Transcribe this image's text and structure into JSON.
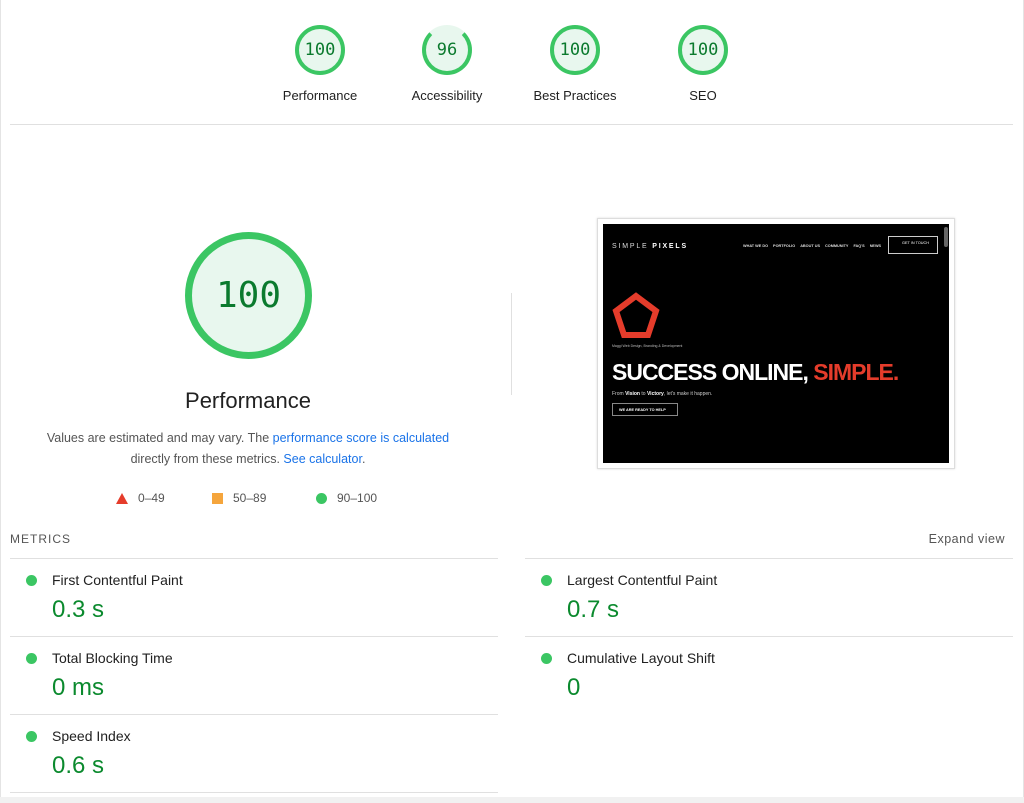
{
  "categories": [
    {
      "label": "Performance",
      "score": "100"
    },
    {
      "label": "Accessibility",
      "score": "96"
    },
    {
      "label": "Best Practices",
      "score": "100"
    },
    {
      "label": "SEO",
      "score": "100"
    }
  ],
  "main": {
    "score": "100",
    "title": "Performance",
    "desc_1": "Values are estimated and may vary. The ",
    "desc_link1": "performance score is calculated",
    "desc_2": "directly from these metrics. ",
    "desc_link2": "See calculator",
    "desc_3": ".",
    "legend": [
      {
        "icon": "triangle",
        "range": "0–49",
        "color": "#e53c2b"
      },
      {
        "icon": "square",
        "range": "50–89",
        "color": "#f5a53c"
      },
      {
        "icon": "circle",
        "range": "90–100",
        "color": "#3bc663"
      }
    ]
  },
  "thumbnail": {
    "logo_a": "SIMPLE ",
    "logo_b": "PIXELS",
    "nav": [
      "WHAT WE DO",
      "PORTFOLIO",
      "ABOUT US",
      "COMMUNITY",
      "FAQ'S",
      "NEWS"
    ],
    "cta": "GET IN TOUCH",
    "tagline": "Maggi Web Design, Branding & Development",
    "hero_a": "SUCCESS ONLINE, ",
    "hero_b": "SIMPLE.",
    "sub_a": "From ",
    "sub_b": "Vision",
    "sub_c": " to ",
    "sub_d": "Victory",
    ", let's make it happen.": "",
    "sub_e": ", let's make it happen.",
    "button": "WE ARE READY TO HELP"
  },
  "metrics": {
    "heading": "METRICS",
    "expand": "Expand view",
    "items": [
      {
        "label": "First Contentful Paint",
        "value": "0.3 s"
      },
      {
        "label": "Largest Contentful Paint",
        "value": "0.7 s"
      },
      {
        "label": "Total Blocking Time",
        "value": "0 ms"
      },
      {
        "label": "Cumulative Layout Shift",
        "value": "0"
      },
      {
        "label": "Speed Index",
        "value": "0.6 s"
      }
    ]
  },
  "colors": {
    "pass": "#3bc663",
    "pass_text": "#0b8a2e",
    "link": "#1a73e8"
  }
}
